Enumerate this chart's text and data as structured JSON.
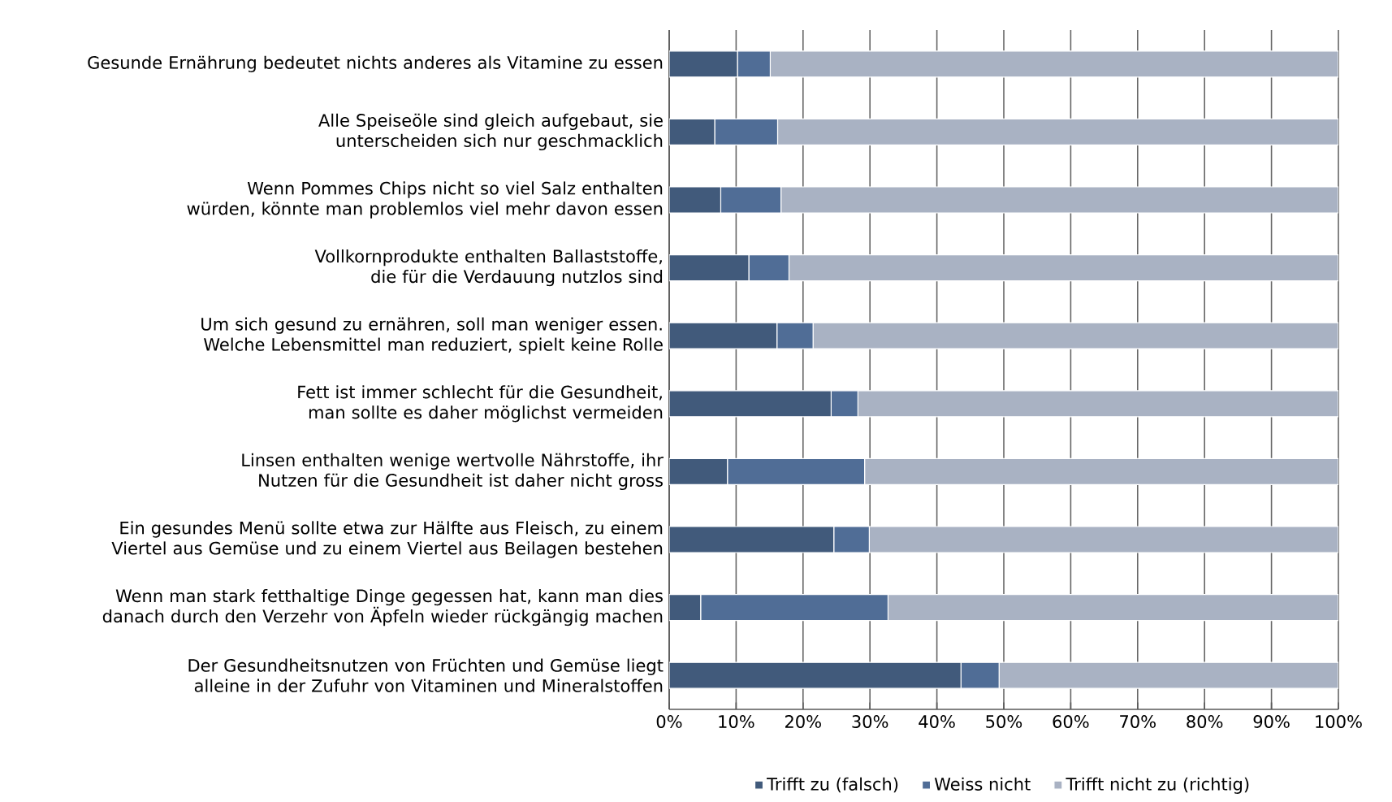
{
  "chart_data": {
    "type": "bar",
    "orientation": "horizontal",
    "stacked": true,
    "categories": [
      "Gesunde Ernährung bedeutet nichts anderes als Vitamine zu essen",
      "Alle Speiseöle sind gleich aufgebaut, sie unterscheiden sich nur geschmacklich",
      "Wenn Pommes Chips nicht so viel Salz enthalten würden, könnte man problemlos viel mehr davon essen",
      "Vollkornprodukte enthalten Ballaststoffe, die für die Verdauung nutzlos sind",
      "Um sich gesund zu ernähren, soll man weniger essen. Welche Lebensmittel man reduziert, spielt keine Rolle",
      "Fett ist immer schlecht für die Gesundheit, man sollte es daher möglichst vermeiden",
      "Linsen enthalten wenige wertvolle Nährstoffe, ihr Nutzen für die Gesundheit ist daher nicht gross",
      "Ein gesundes Menü sollte etwa zur Hälfte aus Fleisch, zu einem Viertel aus Gemüse und zu einem Viertel aus Beilagen bestehen",
      "Wenn man stark fetthaltige Dinge gegessen hat, kann man dies danach durch den Verzehr von Äpfeln wieder rückgängig machen",
      "Der Gesundheitsnutzen von Früchten und Gemüse liegt alleine in der Zufuhr von Vitaminen und Mineralstoffen"
    ],
    "series": [
      {
        "name": "Trifft zu (falsch)",
        "color": "#415a7b",
        "values": [
          10.2,
          6.8,
          7.7,
          11.9,
          16.1,
          24.2,
          8.7,
          24.6,
          4.7,
          43.6
        ]
      },
      {
        "name": "Weiss nicht",
        "color": "#506d96",
        "values": [
          4.9,
          9.4,
          9.0,
          6.0,
          5.4,
          4.0,
          20.5,
          5.3,
          28.0,
          5.7
        ]
      },
      {
        "name": "Trifft nicht zu (richtig)",
        "color": "#a9b2c3",
        "values": [
          84.9,
          83.8,
          83.3,
          82.1,
          78.5,
          71.8,
          70.8,
          70.1,
          67.3,
          50.7
        ]
      }
    ],
    "xlim": [
      0,
      100
    ],
    "xticks": [
      {
        "value": 0,
        "label": "0%"
      },
      {
        "value": 10,
        "label": "10%"
      },
      {
        "value": 20,
        "label": "20%"
      },
      {
        "value": 30,
        "label": "30%"
      },
      {
        "value": 40,
        "label": "40%"
      },
      {
        "value": 50,
        "label": "50%"
      },
      {
        "value": 60,
        "label": "60%"
      },
      {
        "value": 70,
        "label": "70%"
      },
      {
        "value": 80,
        "label": "80%"
      },
      {
        "value": 90,
        "label": "90%"
      },
      {
        "value": 100,
        "label": "100%"
      }
    ],
    "grid": "x",
    "legend": "bottom"
  }
}
